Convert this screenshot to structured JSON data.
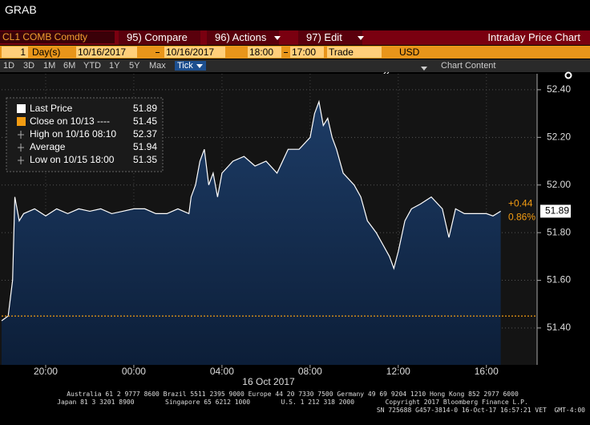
{
  "window": {
    "title": "GRAB"
  },
  "toolbar": {
    "security": "CL1 COMB Comdty",
    "compare": "95) Compare",
    "actions": "96) Actions",
    "edit": "97) Edit",
    "chart_name": "Intraday Price Chart"
  },
  "range_bar": {
    "days": "1",
    "days_unit": "Day(s)",
    "start_date": "10/16/2017",
    "end_date": "10/16/2017",
    "start_time": "18:00",
    "end_time": "17:00",
    "field": "Trade",
    "currency": "USD"
  },
  "periods": [
    "1D",
    "3D",
    "1M",
    "6M",
    "YTD",
    "1Y",
    "5Y",
    "Max",
    "Tick"
  ],
  "chart_toolbar": {
    "content": "Chart Content"
  },
  "chart_data": {
    "type": "line",
    "date_label": "16 Oct 2017",
    "x": [
      0,
      0.3,
      0.5,
      0.6,
      0.8,
      1,
      1.5,
      2,
      2.5,
      3,
      3.5,
      4,
      4.5,
      5,
      5.5,
      6,
      6.5,
      7,
      7.5,
      8,
      8.5,
      8.6,
      8.8,
      9,
      9.2,
      9.4,
      9.6,
      9.8,
      10,
      10.5,
      11,
      11.5,
      12,
      12.5,
      13,
      13.5,
      14,
      14.2,
      14.4,
      14.6,
      14.8,
      15,
      15.2,
      15.5,
      16,
      16.3,
      16.6,
      17,
      17.3,
      17.6,
      17.8,
      18,
      18.3,
      18.6,
      19,
      19.5,
      20,
      20.3,
      20.6,
      21,
      21.5,
      22,
      22.3,
      22.65
    ],
    "series": [
      {
        "name": "Last Price",
        "color": "#ffffff",
        "last_value": 51.89,
        "values": [
          51.43,
          51.45,
          51.6,
          51.95,
          51.85,
          51.88,
          51.9,
          51.87,
          51.9,
          51.88,
          51.9,
          51.89,
          51.9,
          51.88,
          51.89,
          51.9,
          51.9,
          51.88,
          51.88,
          51.9,
          51.88,
          51.95,
          52.0,
          52.1,
          52.15,
          52.0,
          52.05,
          51.95,
          52.05,
          52.1,
          52.12,
          52.08,
          52.1,
          52.05,
          52.15,
          52.15,
          52.2,
          52.3,
          52.35,
          52.25,
          52.28,
          52.2,
          52.15,
          52.05,
          52.0,
          51.95,
          51.85,
          51.8,
          51.75,
          51.7,
          51.65,
          51.72,
          51.85,
          51.9,
          51.92,
          51.95,
          51.9,
          51.78,
          51.9,
          51.88,
          51.88,
          51.88,
          51.87,
          51.89
        ]
      }
    ],
    "close": {
      "label": "Close on 10/13 ----",
      "value": 51.45,
      "color": "#f39c12"
    },
    "stats": [
      {
        "label": "High on 10/16 08:10",
        "value": 52.37
      },
      {
        "label": "Average",
        "value": 51.94
      },
      {
        "label": "Low on 10/15 18:00",
        "value": 51.35
      }
    ],
    "change": {
      "value": 0.44,
      "label": "+0.44"
    },
    "change_pct": {
      "value": 0.86,
      "label": "0.86%"
    },
    "xlim": [
      0,
      24.3
    ],
    "xticks": [
      {
        "value": 2,
        "label": "20:00"
      },
      {
        "value": 6,
        "label": "00:00"
      },
      {
        "value": 10,
        "label": "04:00"
      },
      {
        "value": 14,
        "label": "08:00"
      },
      {
        "value": 18,
        "label": "12:00"
      },
      {
        "value": 22,
        "label": "16:00"
      }
    ],
    "ylim": [
      51.245,
      52.467
    ],
    "yticks": [
      {
        "value": 51.4,
        "label": "51.40"
      },
      {
        "value": 51.6,
        "label": "51.60"
      },
      {
        "value": 51.8,
        "label": "51.80"
      },
      {
        "value": 52.0,
        "label": "52.00"
      },
      {
        "value": 52.2,
        "label": "52.20"
      },
      {
        "value": 52.4,
        "label": "52.40"
      }
    ],
    "grid": true
  },
  "footer": [
    "Australia 61 2 9777 8600 Brazil 5511 2395 9000 Europe 44 20 7330 7500 Germany 49 69 9204 1210 Hong Kong 852 2977 6000",
    "Japan 81 3 3201 8900        Singapore 65 6212 1000        U.S. 1 212 318 2000        Copyright 2017 Bloomberg Finance L.P.",
    "SN 725688 G457-3814-0 16-Oct-17 16:57:21 VET  GMT-4:00"
  ]
}
